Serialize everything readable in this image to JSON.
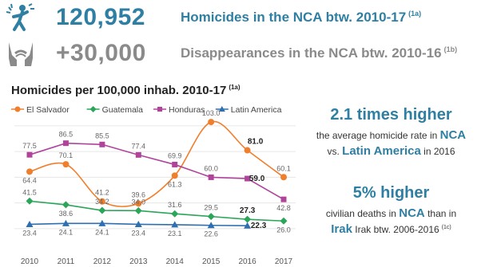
{
  "stats": {
    "homicides": {
      "icon": "shooting-victim-icon",
      "number": "120,952",
      "label": "Homicides in the NCA btw. 2010-17",
      "ref": "(1a)"
    },
    "disappearances": {
      "icon": "bound-hands-icon",
      "number": "+30,000",
      "label": "Disappearances in the NCA btw. 2010-16",
      "ref": "(1b)"
    }
  },
  "chart_title": "Homicides per 100,000 inhab. 2010-17",
  "chart_ref": "(1a)",
  "chart_data": {
    "type": "line",
    "x": [
      2010,
      2011,
      2012,
      2013,
      2014,
      2015,
      2016,
      2017
    ],
    "title": "Homicides per 100,000 inhab. 2010-17",
    "xlabel": "",
    "ylabel": "",
    "ylim": [
      15,
      108
    ],
    "grid": "horizontal",
    "legend": "top",
    "series": [
      {
        "name": "El Salvador",
        "color": "#f07f2d",
        "marker": "circle",
        "smooth": true,
        "values": [
          64.4,
          70.1,
          41.2,
          39.6,
          61.3,
          103.0,
          81.0,
          60.1
        ],
        "labels": [
          "64.4",
          "70.1",
          "41.2",
          "39.6",
          "61.3",
          "103.0",
          "81.0",
          "60.1"
        ]
      },
      {
        "name": "Guatemala",
        "color": "#2aa55a",
        "marker": "diamond",
        "values": [
          41.5,
          38.6,
          34.2,
          34.0,
          31.6,
          29.5,
          27.3,
          26.0
        ],
        "labels": [
          "41.5",
          "38.6",
          "34.2",
          "34.0",
          "31.6",
          "29.5",
          "27.3",
          "26.0"
        ]
      },
      {
        "name": "Honduras",
        "color": "#b0449a",
        "marker": "square",
        "values": [
          77.5,
          86.5,
          85.5,
          77.4,
          69.9,
          60.0,
          59.0,
          42.8
        ],
        "labels": [
          "77.5",
          "86.5",
          "85.5",
          "77.4",
          "69.9",
          "60.0",
          "59.0",
          "42.8"
        ]
      },
      {
        "name": "Latin America",
        "color": "#2f6fb0",
        "marker": "triangle",
        "values": [
          23.4,
          24.1,
          24.1,
          23.4,
          23.1,
          22.6,
          22.3,
          null
        ],
        "labels": [
          "23.4",
          "24.1",
          "24.1",
          "23.4",
          "23.1",
          "22.6",
          "22.3",
          ""
        ]
      }
    ]
  },
  "callouts": [
    {
      "headline": "2.1 times higher",
      "line1_pre": "the average homicide rate in ",
      "line1_hl": "NCA",
      "line2_pre": "vs. ",
      "line2_hl": "Latin America",
      "line2_post": " in 2016"
    },
    {
      "headline": "5% higher",
      "line1_pre": "civilian deaths in ",
      "line1_hl": "NCA",
      "line1_post": " than in",
      "line2_hl": "Irak",
      "line2_post": " Irak btw. 2006-2016",
      "ref": "(1c)"
    }
  ]
}
